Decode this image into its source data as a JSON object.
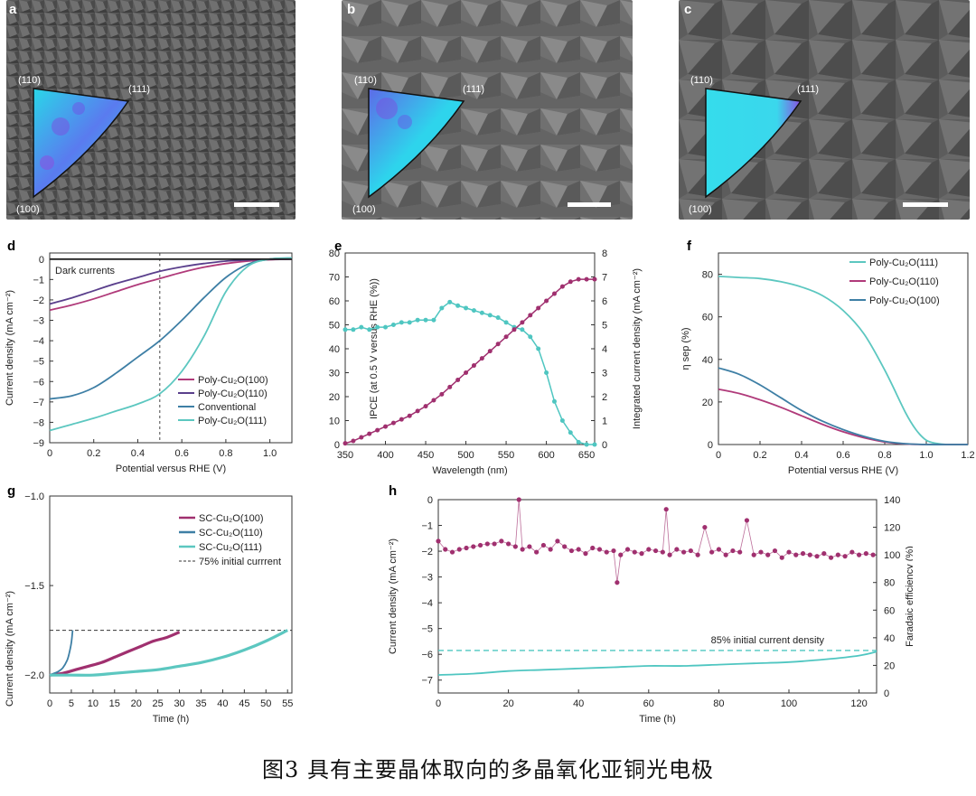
{
  "caption": "图3 具有主要晶体取向的多晶氧化亚铜光电极",
  "sem_panels": [
    {
      "letter": "a",
      "labels": {
        "top_left": "(110)",
        "top_right": "(111)",
        "bottom": "(100)"
      }
    },
    {
      "letter": "b",
      "labels": {
        "top_left": "(110)",
        "top_right": "(111)",
        "bottom": "(100)"
      }
    },
    {
      "letter": "c",
      "labels": {
        "top_left": "(110)",
        "top_right": "(111)",
        "bottom": "(100)"
      }
    }
  ],
  "colors": {
    "poly100": "#b03a7a",
    "poly110": "#5a3f8c",
    "conventional": "#3e7fa5",
    "poly111": "#5cc7c0",
    "ipce": "#4fc6c1",
    "integrated": "#a0306f"
  },
  "chart_data": [
    {
      "id": "d",
      "type": "line",
      "xlabel": "Potential versus RHE (V)",
      "ylabel": "Current density (mA cm⁻²)",
      "xlim": [
        0,
        1.1
      ],
      "ylim": [
        -9,
        0.3
      ],
      "xticks": [
        "0",
        "0.2",
        "0.4",
        "0.6",
        "0.8",
        "1.0"
      ],
      "yticks": [
        "0",
        "−1",
        "−2",
        "−3",
        "−4",
        "−5",
        "−6",
        "−7",
        "−8",
        "−9"
      ],
      "annotation": "Dark currents",
      "marker_x": 0.5,
      "legend": [
        "Poly-Cu₂O(100)",
        "Poly-Cu₂O(110)",
        "Conventional",
        "Poly-Cu₂O(111)"
      ],
      "series": [
        {
          "name": "Poly-Cu₂O(100)",
          "x": [
            0,
            0.1,
            0.2,
            0.3,
            0.4,
            0.5,
            0.6,
            0.7,
            0.8,
            0.9,
            1.0,
            1.1
          ],
          "y": [
            -2.5,
            -2.25,
            -1.95,
            -1.6,
            -1.25,
            -0.95,
            -0.65,
            -0.4,
            -0.22,
            -0.1,
            -0.03,
            0
          ]
        },
        {
          "name": "Poly-Cu₂O(110)",
          "x": [
            0,
            0.1,
            0.2,
            0.3,
            0.4,
            0.5,
            0.6,
            0.7,
            0.8,
            0.9,
            1.0,
            1.1
          ],
          "y": [
            -2.2,
            -1.9,
            -1.55,
            -1.2,
            -0.9,
            -0.6,
            -0.38,
            -0.22,
            -0.1,
            -0.04,
            -0.01,
            0
          ]
        },
        {
          "name": "Conventional",
          "x": [
            0,
            0.1,
            0.2,
            0.3,
            0.4,
            0.5,
            0.6,
            0.7,
            0.8,
            0.9,
            1.0,
            1.1
          ],
          "y": [
            -6.85,
            -6.7,
            -6.3,
            -5.6,
            -4.8,
            -4.0,
            -3.0,
            -1.9,
            -0.9,
            -0.25,
            0,
            0.05
          ]
        },
        {
          "name": "Poly-Cu₂O(111)",
          "x": [
            0,
            0.1,
            0.2,
            0.3,
            0.4,
            0.5,
            0.6,
            0.7,
            0.8,
            0.9,
            1.0,
            1.1
          ],
          "y": [
            -8.4,
            -8.1,
            -7.8,
            -7.45,
            -7.1,
            -6.6,
            -5.5,
            -3.8,
            -1.6,
            -0.35,
            0,
            0.05
          ]
        },
        {
          "name": "Dark currents",
          "x": [
            0,
            0.2,
            0.4,
            0.6,
            0.8,
            1.0,
            1.1
          ],
          "y": [
            0,
            0,
            0,
            0,
            0,
            0,
            0
          ]
        }
      ]
    },
    {
      "id": "e",
      "type": "line",
      "xlabel": "Wavelength (nm)",
      "ylabel": "IPCE (at 0.5 V versus RHE (%))",
      "ylabel_right": "Integrated current density (mA cm⁻²)",
      "xlim": [
        350,
        660
      ],
      "ylim": [
        0,
        80
      ],
      "ylim_right": [
        0,
        8
      ],
      "xticks": [
        "350",
        "400",
        "450",
        "500",
        "550",
        "600",
        "650"
      ],
      "yticks": [
        "0",
        "10",
        "20",
        "30",
        "40",
        "50",
        "60",
        "70",
        "80"
      ],
      "yticks_right": [
        "0",
        "1",
        "2",
        "3",
        "4",
        "5",
        "6",
        "7",
        "8"
      ],
      "series": [
        {
          "name": "IPCE",
          "x": [
            350,
            360,
            370,
            380,
            390,
            400,
            410,
            420,
            430,
            440,
            450,
            460,
            470,
            480,
            490,
            500,
            510,
            520,
            530,
            540,
            550,
            560,
            570,
            580,
            590,
            600,
            610,
            620,
            630,
            640,
            650,
            660
          ],
          "y": [
            48,
            48,
            49,
            48,
            49,
            49,
            50,
            51,
            51,
            52,
            52,
            52,
            57,
            59.5,
            58,
            57,
            56,
            55,
            54,
            53,
            51,
            49,
            48,
            45,
            40,
            30,
            18,
            10,
            5,
            1,
            0,
            0
          ]
        },
        {
          "name": "Integrated",
          "x": [
            350,
            360,
            370,
            380,
            390,
            400,
            410,
            420,
            430,
            440,
            450,
            460,
            470,
            480,
            490,
            500,
            510,
            520,
            530,
            540,
            550,
            560,
            570,
            580,
            590,
            600,
            610,
            620,
            630,
            640,
            650,
            660
          ],
          "y": [
            0.05,
            0.15,
            0.3,
            0.45,
            0.6,
            0.75,
            0.9,
            1.05,
            1.2,
            1.4,
            1.6,
            1.85,
            2.1,
            2.4,
            2.7,
            3.0,
            3.3,
            3.6,
            3.9,
            4.2,
            4.5,
            4.8,
            5.1,
            5.4,
            5.7,
            6.0,
            6.3,
            6.6,
            6.8,
            6.9,
            6.9,
            6.9
          ]
        }
      ]
    },
    {
      "id": "f",
      "type": "line",
      "xlabel": "Potential versus RHE (V)",
      "ylabel": "η sep (%)",
      "xlim": [
        0,
        1.2
      ],
      "ylim": [
        0,
        90
      ],
      "xticks": [
        "0",
        "0.2",
        "0.4",
        "0.6",
        "0.8",
        "1.0",
        "1.2"
      ],
      "yticks": [
        "0",
        "20",
        "40",
        "60",
        "80"
      ],
      "legend": [
        "Poly-Cu₂O(111)",
        "Poly-Cu₂O(110)",
        "Poly-Cu₂O(100)"
      ],
      "series": [
        {
          "name": "Poly-Cu₂O(111)",
          "x": [
            0,
            0.1,
            0.2,
            0.3,
            0.4,
            0.5,
            0.6,
            0.7,
            0.8,
            0.9,
            0.95,
            1.0,
            1.05,
            1.1,
            1.2
          ],
          "y": [
            79,
            78.5,
            78,
            76.5,
            74,
            70,
            63,
            52,
            35,
            15,
            7,
            2,
            0.5,
            0,
            0
          ]
        },
        {
          "name": "Poly-Cu₂O(110)",
          "x": [
            0,
            0.1,
            0.2,
            0.3,
            0.4,
            0.5,
            0.6,
            0.7,
            0.8,
            0.9,
            1.0,
            1.1,
            1.2
          ],
          "y": [
            26,
            24,
            21,
            17.5,
            13.5,
            9.5,
            6,
            3.2,
            1.2,
            0.3,
            0,
            0,
            0
          ]
        },
        {
          "name": "Poly-Cu₂O(100)",
          "x": [
            0,
            0.1,
            0.2,
            0.3,
            0.4,
            0.5,
            0.6,
            0.7,
            0.8,
            0.9,
            1.0,
            1.1,
            1.2
          ],
          "y": [
            36,
            33,
            28,
            22,
            16,
            11,
            7,
            3.8,
            1.5,
            0.4,
            0,
            0,
            0
          ]
        }
      ]
    },
    {
      "id": "g",
      "type": "line",
      "xlabel": "Time (h)",
      "ylabel": "Current density (mA cm⁻²)",
      "xlim": [
        0,
        56
      ],
      "ylim": [
        -2.1,
        -1.0
      ],
      "xticks": [
        "0",
        "5",
        "10",
        "15",
        "20",
        "25",
        "30",
        "35",
        "40",
        "45",
        "50",
        "55"
      ],
      "yticks": [
        "−1.0",
        "−1.5",
        "−2.0"
      ],
      "legend": [
        "SC-Cu₂O(100)",
        "SC-Cu₂O(110)",
        "SC-Cu₂O(111)",
        "75% initial currrent"
      ],
      "reference_y": -1.75,
      "series": [
        {
          "name": "SC-Cu₂O(100)",
          "x": [
            0,
            3,
            6,
            9,
            12,
            15,
            18,
            21,
            24,
            27,
            30
          ],
          "y": [
            -2.0,
            -1.99,
            -1.97,
            -1.95,
            -1.93,
            -1.9,
            -1.87,
            -1.84,
            -1.81,
            -1.79,
            -1.76
          ]
        },
        {
          "name": "SC-Cu₂O(110)",
          "x": [
            0,
            1,
            2,
            3,
            4,
            4.5,
            5,
            5.3
          ],
          "y": [
            -2.0,
            -1.99,
            -1.98,
            -1.96,
            -1.92,
            -1.88,
            -1.82,
            -1.75
          ]
        },
        {
          "name": "SC-Cu₂O(111)",
          "x": [
            0,
            5,
            10,
            15,
            20,
            25,
            30,
            35,
            40,
            45,
            50,
            55
          ],
          "y": [
            -2.0,
            -2.0,
            -2.0,
            -1.99,
            -1.98,
            -1.97,
            -1.95,
            -1.93,
            -1.9,
            -1.86,
            -1.81,
            -1.75
          ]
        }
      ]
    },
    {
      "id": "h",
      "type": "scatter",
      "xlabel": "Time (h)",
      "ylabel": "Current density (mA cm⁻²)",
      "ylabel_right": "Faradaic efficiency (%)",
      "xlim": [
        0,
        125
      ],
      "ylim": [
        -7.5,
        0
      ],
      "ylim_right": [
        0,
        140
      ],
      "xticks": [
        "0",
        "20",
        "40",
        "60",
        "80",
        "100",
        "120"
      ],
      "yticks": [
        "0",
        "−1",
        "−2",
        "−3",
        "−4",
        "−5",
        "−6",
        "−7"
      ],
      "yticks_right": [
        "0",
        "20",
        "40",
        "60",
        "80",
        "100",
        "120",
        "140"
      ],
      "annotation": "85% initial current density",
      "reference_y": -5.85,
      "series": [
        {
          "name": "Current density",
          "x": [
            0,
            10,
            20,
            30,
            40,
            50,
            60,
            70,
            80,
            90,
            100,
            110,
            120,
            125
          ],
          "y": [
            -6.8,
            -6.75,
            -6.65,
            -6.6,
            -6.55,
            -6.5,
            -6.45,
            -6.45,
            -6.4,
            -6.35,
            -6.3,
            -6.2,
            -6.05,
            -5.9
          ]
        },
        {
          "name": "Faradaic efficiency",
          "x": [
            0,
            2,
            4,
            6,
            8,
            10,
            12,
            14,
            16,
            18,
            20,
            22,
            23,
            24,
            26,
            28,
            30,
            32,
            34,
            36,
            38,
            40,
            42,
            44,
            46,
            48,
            50,
            51,
            52,
            54,
            56,
            58,
            60,
            62,
            64,
            65,
            66,
            68,
            70,
            72,
            74,
            76,
            78,
            80,
            82,
            84,
            86,
            88,
            90,
            92,
            94,
            96,
            98,
            100,
            102,
            104,
            106,
            108,
            110,
            112,
            114,
            116,
            118,
            120,
            122,
            124
          ],
          "y": [
            110,
            104,
            102,
            104,
            105,
            106,
            107,
            108,
            108,
            110,
            108,
            106,
            140,
            104,
            106,
            102,
            107,
            104,
            110,
            106,
            103,
            104,
            101,
            105,
            104,
            102,
            103,
            80,
            100,
            104,
            102,
            101,
            104,
            103,
            102,
            133,
            100,
            104,
            102,
            103,
            100,
            120,
            102,
            104,
            100,
            103,
            102,
            125,
            100,
            102,
            100,
            103,
            98,
            102,
            100,
            101,
            100,
            99,
            101,
            98,
            100,
            99,
            102,
            100,
            101,
            100
          ]
        }
      ]
    }
  ]
}
